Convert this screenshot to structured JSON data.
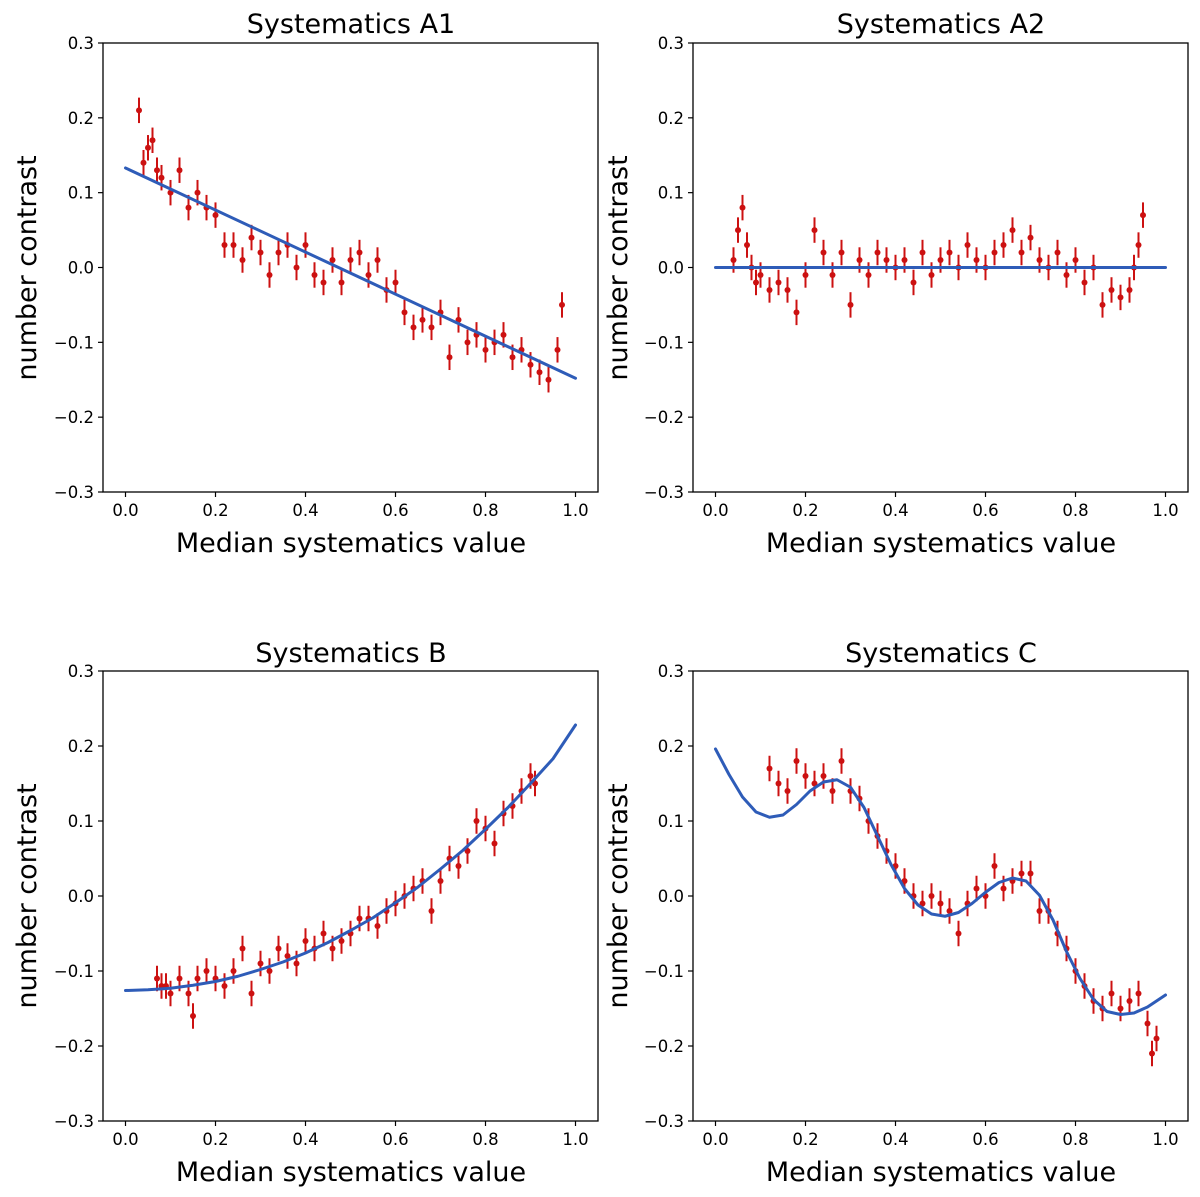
{
  "chart_data": [
    {
      "type": "scatter",
      "title": "Systematics A1",
      "xlabel": "Median systematics value",
      "ylabel": "number contrast",
      "xlim": [
        -0.05,
        1.05
      ],
      "ylim": [
        -0.3,
        0.3
      ],
      "xticks": [
        "0.0",
        "0.2",
        "0.4",
        "0.6",
        "0.8",
        "1.0"
      ],
      "yticks": [
        "−0.3",
        "−0.2",
        "−0.1",
        "0.0",
        "0.1",
        "0.2",
        "0.3"
      ],
      "grid": false,
      "colors": {
        "data": "#cc1111",
        "fit": "#2e5cb8"
      },
      "series": [
        {
          "kind": "errorbar",
          "x": [
            0.03,
            0.04,
            0.05,
            0.06,
            0.07,
            0.08,
            0.1,
            0.12,
            0.14,
            0.16,
            0.18,
            0.2,
            0.22,
            0.24,
            0.26,
            0.28,
            0.3,
            0.32,
            0.34,
            0.36,
            0.38,
            0.4,
            0.42,
            0.44,
            0.46,
            0.48,
            0.5,
            0.52,
            0.54,
            0.56,
            0.58,
            0.6,
            0.62,
            0.64,
            0.66,
            0.68,
            0.7,
            0.72,
            0.74,
            0.76,
            0.78,
            0.8,
            0.82,
            0.84,
            0.86,
            0.88,
            0.9,
            0.92,
            0.94,
            0.96,
            0.97
          ],
          "y": [
            0.21,
            0.14,
            0.16,
            0.17,
            0.13,
            0.12,
            0.1,
            0.13,
            0.08,
            0.1,
            0.08,
            0.07,
            0.03,
            0.03,
            0.01,
            0.04,
            0.02,
            -0.01,
            0.02,
            0.03,
            0.0,
            0.03,
            -0.01,
            -0.02,
            0.01,
            -0.02,
            0.01,
            0.02,
            -0.01,
            0.01,
            -0.03,
            -0.02,
            -0.06,
            -0.08,
            -0.07,
            -0.08,
            -0.06,
            -0.12,
            -0.07,
            -0.1,
            -0.09,
            -0.11,
            -0.1,
            -0.09,
            -0.12,
            -0.11,
            -0.13,
            -0.14,
            -0.15,
            -0.11,
            -0.05
          ],
          "yerr": 0.017
        },
        {
          "kind": "line",
          "x": [
            0.0,
            1.0
          ],
          "y": [
            0.133,
            -0.148
          ]
        }
      ]
    },
    {
      "type": "scatter",
      "title": "Systematics A2",
      "xlabel": "Median systematics value",
      "ylabel": "number contrast",
      "xlim": [
        -0.05,
        1.05
      ],
      "ylim": [
        -0.3,
        0.3
      ],
      "xticks": [
        "0.0",
        "0.2",
        "0.4",
        "0.6",
        "0.8",
        "1.0"
      ],
      "yticks": [
        "−0.3",
        "−0.2",
        "−0.1",
        "0.0",
        "0.1",
        "0.2",
        "0.3"
      ],
      "grid": false,
      "colors": {
        "data": "#cc1111",
        "fit": "#2e5cb8"
      },
      "series": [
        {
          "kind": "errorbar",
          "x": [
            0.04,
            0.05,
            0.06,
            0.07,
            0.08,
            0.09,
            0.1,
            0.12,
            0.14,
            0.16,
            0.18,
            0.2,
            0.22,
            0.24,
            0.26,
            0.28,
            0.3,
            0.32,
            0.34,
            0.36,
            0.38,
            0.4,
            0.42,
            0.44,
            0.46,
            0.48,
            0.5,
            0.52,
            0.54,
            0.56,
            0.58,
            0.6,
            0.62,
            0.64,
            0.66,
            0.68,
            0.7,
            0.72,
            0.74,
            0.76,
            0.78,
            0.8,
            0.82,
            0.84,
            0.86,
            0.88,
            0.9,
            0.92,
            0.93,
            0.94,
            0.95
          ],
          "y": [
            0.01,
            0.05,
            0.08,
            0.03,
            0.0,
            -0.02,
            -0.01,
            -0.03,
            -0.02,
            -0.03,
            -0.06,
            -0.01,
            0.05,
            0.02,
            -0.01,
            0.02,
            -0.05,
            0.01,
            -0.01,
            0.02,
            0.01,
            0.0,
            0.01,
            -0.02,
            0.02,
            -0.01,
            0.01,
            0.02,
            0.0,
            0.03,
            0.01,
            0.0,
            0.02,
            0.03,
            0.05,
            0.02,
            0.04,
            0.01,
            0.0,
            0.02,
            -0.01,
            0.01,
            -0.02,
            0.0,
            -0.05,
            -0.03,
            -0.04,
            -0.03,
            0.0,
            0.03,
            0.07
          ],
          "yerr": 0.017
        },
        {
          "kind": "line",
          "x": [
            0.0,
            1.0
          ],
          "y": [
            0.0,
            0.0
          ]
        }
      ]
    },
    {
      "type": "scatter",
      "title": "Systematics B",
      "xlabel": "Median systematics value",
      "ylabel": "number contrast",
      "xlim": [
        -0.05,
        1.05
      ],
      "ylim": [
        -0.3,
        0.3
      ],
      "xticks": [
        "0.0",
        "0.2",
        "0.4",
        "0.6",
        "0.8",
        "1.0"
      ],
      "yticks": [
        "−0.3",
        "−0.2",
        "−0.1",
        "0.0",
        "0.1",
        "0.2",
        "0.3"
      ],
      "grid": false,
      "colors": {
        "data": "#cc1111",
        "fit": "#2e5cb8"
      },
      "series": [
        {
          "kind": "errorbar",
          "x": [
            0.07,
            0.08,
            0.09,
            0.1,
            0.12,
            0.14,
            0.15,
            0.16,
            0.18,
            0.2,
            0.22,
            0.24,
            0.26,
            0.28,
            0.3,
            0.32,
            0.34,
            0.36,
            0.38,
            0.4,
            0.42,
            0.44,
            0.46,
            0.48,
            0.5,
            0.52,
            0.54,
            0.56,
            0.58,
            0.6,
            0.62,
            0.64,
            0.66,
            0.68,
            0.7,
            0.72,
            0.74,
            0.76,
            0.78,
            0.8,
            0.82,
            0.84,
            0.86,
            0.88,
            0.9,
            0.91
          ],
          "y": [
            -0.11,
            -0.12,
            -0.12,
            -0.13,
            -0.11,
            -0.13,
            -0.16,
            -0.11,
            -0.1,
            -0.11,
            -0.12,
            -0.1,
            -0.07,
            -0.13,
            -0.09,
            -0.1,
            -0.07,
            -0.08,
            -0.09,
            -0.06,
            -0.07,
            -0.05,
            -0.07,
            -0.06,
            -0.05,
            -0.03,
            -0.03,
            -0.04,
            -0.02,
            -0.01,
            0.0,
            0.01,
            0.02,
            -0.02,
            0.02,
            0.05,
            0.04,
            0.06,
            0.1,
            0.09,
            0.07,
            0.11,
            0.12,
            0.14,
            0.16,
            0.15
          ],
          "yerr": 0.017
        },
        {
          "kind": "line",
          "x": [
            0.0,
            0.05,
            0.1,
            0.15,
            0.2,
            0.25,
            0.3,
            0.35,
            0.4,
            0.45,
            0.5,
            0.55,
            0.6,
            0.65,
            0.7,
            0.75,
            0.8,
            0.85,
            0.9,
            0.95,
            1.0
          ],
          "y": [
            -0.126,
            -0.125,
            -0.123,
            -0.119,
            -0.114,
            -0.107,
            -0.098,
            -0.088,
            -0.076,
            -0.062,
            -0.046,
            -0.029,
            -0.009,
            0.012,
            0.036,
            0.061,
            0.089,
            0.118,
            0.15,
            0.183,
            0.228
          ]
        }
      ]
    },
    {
      "type": "scatter",
      "title": "Systematics C",
      "xlabel": "Median systematics value",
      "ylabel": "number contrast",
      "xlim": [
        -0.05,
        1.05
      ],
      "ylim": [
        -0.3,
        0.3
      ],
      "xticks": [
        "0.0",
        "0.2",
        "0.4",
        "0.6",
        "0.8",
        "1.0"
      ],
      "yticks": [
        "−0.3",
        "−0.2",
        "−0.1",
        "0.0",
        "0.1",
        "0.2",
        "0.3"
      ],
      "grid": false,
      "colors": {
        "data": "#cc1111",
        "fit": "#2e5cb8"
      },
      "series": [
        {
          "kind": "errorbar",
          "x": [
            0.12,
            0.14,
            0.16,
            0.18,
            0.2,
            0.22,
            0.24,
            0.26,
            0.28,
            0.3,
            0.32,
            0.34,
            0.36,
            0.38,
            0.4,
            0.42,
            0.44,
            0.46,
            0.48,
            0.5,
            0.52,
            0.54,
            0.56,
            0.58,
            0.6,
            0.62,
            0.64,
            0.66,
            0.68,
            0.7,
            0.72,
            0.74,
            0.76,
            0.78,
            0.8,
            0.82,
            0.84,
            0.86,
            0.88,
            0.9,
            0.92,
            0.94,
            0.96,
            0.97,
            0.98
          ],
          "y": [
            0.17,
            0.15,
            0.14,
            0.18,
            0.16,
            0.15,
            0.16,
            0.14,
            0.18,
            0.14,
            0.13,
            0.1,
            0.08,
            0.06,
            0.04,
            0.02,
            0.0,
            -0.01,
            0.0,
            -0.01,
            -0.02,
            -0.05,
            -0.01,
            0.01,
            0.0,
            0.04,
            0.01,
            0.02,
            0.03,
            0.03,
            -0.02,
            -0.02,
            -0.05,
            -0.07,
            -0.1,
            -0.12,
            -0.14,
            -0.15,
            -0.13,
            -0.15,
            -0.14,
            -0.13,
            -0.17,
            -0.21,
            -0.19
          ],
          "yerr": 0.017
        },
        {
          "kind": "line",
          "x": [
            0.0,
            0.03,
            0.06,
            0.09,
            0.12,
            0.15,
            0.18,
            0.21,
            0.24,
            0.27,
            0.3,
            0.33,
            0.36,
            0.39,
            0.42,
            0.45,
            0.48,
            0.51,
            0.54,
            0.57,
            0.6,
            0.63,
            0.66,
            0.69,
            0.72,
            0.75,
            0.78,
            0.81,
            0.84,
            0.87,
            0.9,
            0.93,
            0.96,
            1.0
          ],
          "y": [
            0.196,
            0.162,
            0.132,
            0.112,
            0.105,
            0.108,
            0.122,
            0.14,
            0.152,
            0.155,
            0.145,
            0.118,
            0.08,
            0.042,
            0.01,
            -0.012,
            -0.024,
            -0.027,
            -0.022,
            -0.01,
            0.005,
            0.018,
            0.024,
            0.02,
            0.001,
            -0.032,
            -0.074,
            -0.11,
            -0.138,
            -0.154,
            -0.158,
            -0.156,
            -0.148,
            -0.132
          ]
        }
      ]
    }
  ]
}
